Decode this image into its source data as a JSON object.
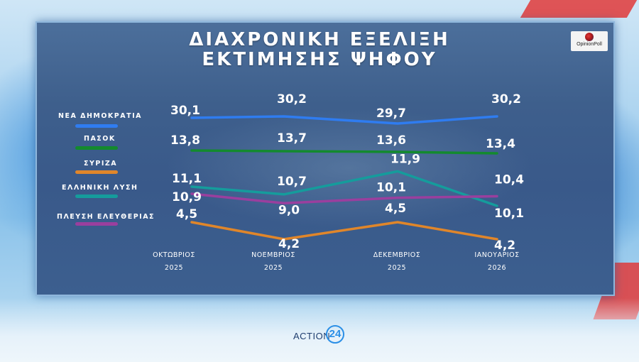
{
  "title_line1": "ΔΙΑΧΡΟΝΙΚΗ  ΕΞΕΛΙΞΗ",
  "title_line2": "ΕΚΤΙΜΗΣΗΣ  ΨΗΦΟΥ",
  "logo_text": "OpinionPoll",
  "brand": {
    "name": "ACTION",
    "number": "24"
  },
  "chart_data": {
    "type": "line",
    "categories": [
      {
        "month": "ΟΚΤΩΒΡΙΟΣ",
        "year": "2025"
      },
      {
        "month": "ΝΟΕΜΒΡΙΟΣ",
        "year": "2025"
      },
      {
        "month": "ΔΕΚΕΜΒΡΙΟΣ",
        "year": "2025"
      },
      {
        "month": "ΙΑΝΟΥΑΡΙΟΣ",
        "year": "2026"
      }
    ],
    "series": [
      {
        "name": "ΝΕΑ  ΔΗΜΟΚΡΑΤΙΑ",
        "color": "#2f7cf0",
        "values": [
          30.1,
          30.2,
          29.7,
          30.2
        ],
        "labels": [
          "30,1",
          "30,2",
          "29,7",
          "30,2"
        ]
      },
      {
        "name": "ΠΑΣΟΚ",
        "color": "#138a2e",
        "values": [
          13.8,
          13.7,
          13.6,
          13.4
        ],
        "labels": [
          "13,8",
          "13,7",
          "13,6",
          "13,4"
        ]
      },
      {
        "name": "ΣΥΡΙΖΑ",
        "color": "#e0862a",
        "values": [
          4.5,
          4.2,
          4.5,
          4.2
        ],
        "labels": [
          "4,5",
          "4,2",
          "4,5",
          "4,2"
        ]
      },
      {
        "name": "ΕΛΛΗΝΙΚΗ  ΛΥΣΗ",
        "color": "#159c9c",
        "values": [
          11.1,
          10.7,
          11.9,
          10.1
        ],
        "labels": [
          "11,1",
          "10,7",
          "11,9",
          "10,1"
        ]
      },
      {
        "name": "ΠΛΕΥΣΗ  ΕΛΕΥΘΕΡΙΑΣ",
        "color": "#9a3f9e",
        "values": [
          10.9,
          9.0,
          10.1,
          10.4
        ],
        "labels": [
          "10,9",
          "9,0",
          "10,1",
          "10,4"
        ]
      }
    ]
  }
}
